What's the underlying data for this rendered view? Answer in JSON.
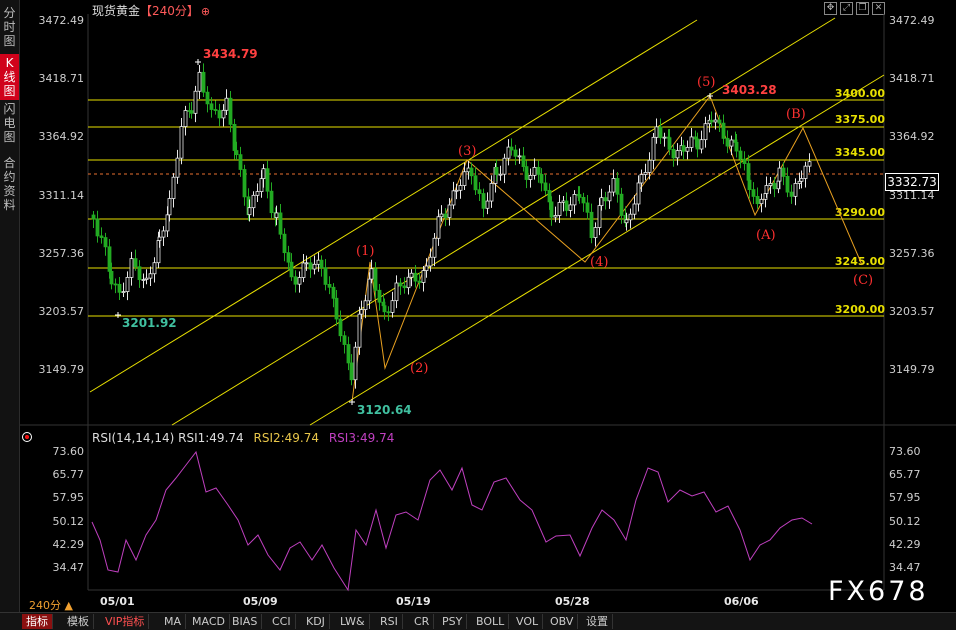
{
  "sidebar": {
    "items": [
      {
        "label": "分时图",
        "active": false
      },
      {
        "label": "K线图",
        "active": true
      },
      {
        "label": "闪电图",
        "active": false
      },
      {
        "label": "合约资料",
        "active": false
      }
    ]
  },
  "header": {
    "instrument": "现货黄金",
    "period_tag": "【240分】",
    "add_icon": "circle-plus-icon",
    "window_icons": [
      "fullscreen-icon",
      "move-icon",
      "restore-icon",
      "close-icon"
    ]
  },
  "price_axis": {
    "ticks": [
      "3472.49",
      "3418.71",
      "3364.92",
      "3311.14",
      "3257.36",
      "3203.57",
      "3149.79"
    ],
    "current_price": "3332.73"
  },
  "rsi_axis": {
    "ticks": [
      "73.60",
      "65.77",
      "57.95",
      "50.12",
      "42.29",
      "34.47"
    ]
  },
  "date_axis": {
    "labels": [
      "05/01",
      "05/09",
      "05/19",
      "05/28",
      "06/06"
    ]
  },
  "annotations": {
    "high_label": "3434.79",
    "low_label": "3120.64",
    "start_low_label": "3201.92",
    "wave5_label": "3403.28",
    "level_labels": [
      "3400.00",
      "3375.00",
      "3345.00",
      "3290.00",
      "3245.00",
      "3200.00"
    ],
    "wave_labels": [
      "(1)",
      "(2)",
      "(3)",
      "(4)",
      "(5)",
      "(A)",
      "(B)",
      "(C)"
    ]
  },
  "rsi_legend": {
    "name": "RSI(14,14,14)",
    "rsi1": "RSI1:49.74",
    "rsi2": "RSI2:49.74",
    "rsi3": "RSI3:49.74"
  },
  "period_button": "240分 ▲",
  "watermark": "FX678",
  "bottom_tabs": [
    "指标",
    "模板",
    "VIP指标",
    "MA",
    "MACD",
    "BIAS",
    "CCI",
    "KDJ",
    "LW&",
    "RSI",
    "CR",
    "PSY",
    "BOLL",
    "VOL",
    "OBV",
    "设置"
  ],
  "colors": {
    "up": "#e8e8e8",
    "down": "#22aa22",
    "level_line": "#e8e000",
    "channel": "#e8e000",
    "wave": "#e8a020",
    "rsi": "#c040c0",
    "label_red": "#ff4040",
    "label_green": "#40c0a0"
  }
}
